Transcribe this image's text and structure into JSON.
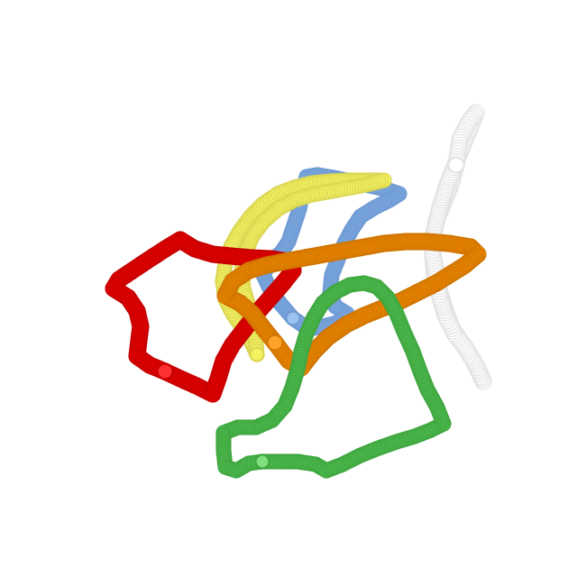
{
  "strokes": [
    {
      "name": "white-stroke",
      "fill": "#ffffff",
      "stroke": "#e2e2e2",
      "start_fill": "#ffffff"
    },
    {
      "name": "blue-stroke",
      "fill": "#7aa6de",
      "stroke": "#6f9ad3",
      "start_fill": "#9cc3f2"
    },
    {
      "name": "yellow-stroke",
      "fill": "#f4f261",
      "stroke": "#d9d552",
      "start_fill": "#f4f261"
    },
    {
      "name": "red-stroke",
      "fill": "#e00000",
      "stroke": "#c80000",
      "start_fill": "#ff3030"
    },
    {
      "name": "orange-stroke",
      "fill": "#e88400",
      "stroke": "#d07500",
      "start_fill": "#ffa22a"
    },
    {
      "name": "green-stroke",
      "fill": "#4cb84c",
      "stroke": "#3fa63f",
      "start_fill": "#7ee07e"
    }
  ]
}
